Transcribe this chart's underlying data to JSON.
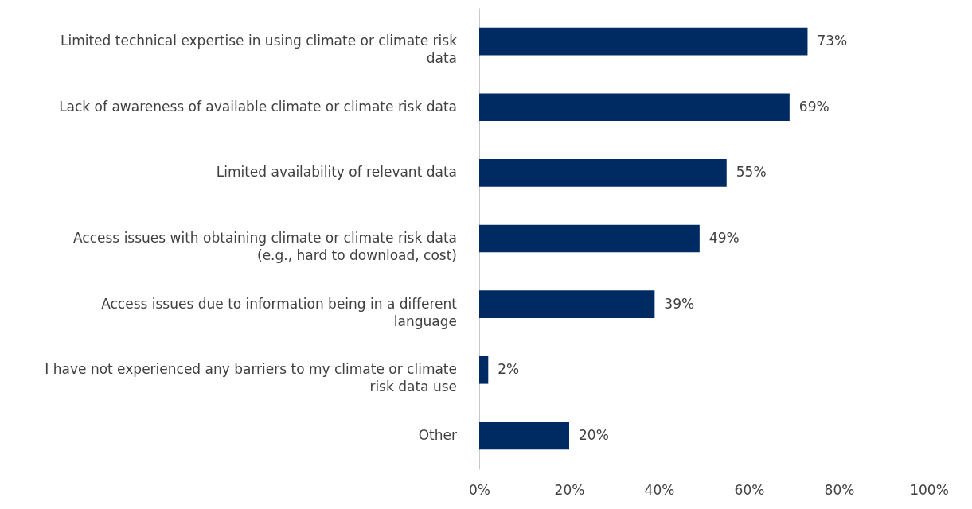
{
  "chart_data": {
    "type": "bar",
    "orientation": "horizontal",
    "categories": [
      "Limited technical expertise in using climate or climate risk data",
      "Lack of awareness of available climate or climate risk data",
      "Limited availability of relevant data",
      "Access issues with obtaining climate or climate risk data (e.g., hard to download, cost)",
      "Access issues due to information being in a different language",
      "I have not experienced any barriers to my climate or climate risk data use",
      "Other"
    ],
    "values": [
      73,
      69,
      55,
      49,
      39,
      2,
      20
    ],
    "value_labels": [
      "73%",
      "69%",
      "55%",
      "49%",
      "39%",
      "2%",
      "20%"
    ],
    "color": "#002b62",
    "xlim": [
      0,
      100
    ],
    "xticks": [
      {
        "value": 0,
        "label": "0%"
      },
      {
        "value": 20,
        "label": "20%"
      },
      {
        "value": 40,
        "label": "40%"
      },
      {
        "value": 60,
        "label": "60%"
      },
      {
        "value": 80,
        "label": "80%"
      },
      {
        "value": 100,
        "label": "100%"
      }
    ],
    "grid": false
  }
}
